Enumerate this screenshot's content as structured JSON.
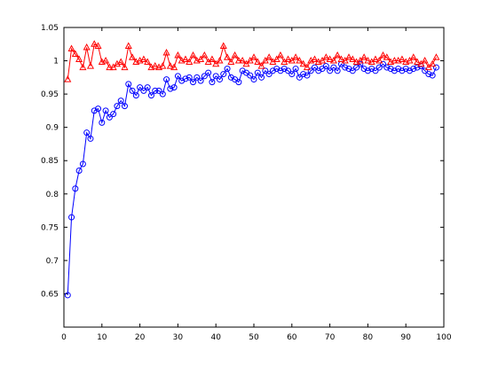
{
  "chart_data": {
    "type": "line",
    "title": "",
    "xlabel": "",
    "ylabel": "",
    "xlim": [
      0,
      100
    ],
    "ylim": [
      0.6,
      1.05
    ],
    "grid": false,
    "legend": "none",
    "xticks": [
      0,
      10,
      20,
      30,
      40,
      50,
      60,
      70,
      80,
      90,
      100
    ],
    "xtick_labels": [
      "0",
      "10",
      "20",
      "30",
      "40",
      "50",
      "60",
      "70",
      "80",
      "90",
      "100"
    ],
    "yticks": [
      0.65,
      0.7,
      0.75,
      0.8,
      0.85,
      0.9,
      0.95,
      1,
      1.05
    ],
    "ytick_labels": [
      "0.65",
      "0.7",
      "0.75",
      "0.8",
      "0.85",
      "0.9",
      "0.95",
      "1",
      "1.05"
    ],
    "x": [
      1,
      2,
      3,
      4,
      5,
      6,
      7,
      8,
      9,
      10,
      11,
      12,
      13,
      14,
      15,
      16,
      17,
      18,
      19,
      20,
      21,
      22,
      23,
      24,
      25,
      26,
      27,
      28,
      29,
      30,
      31,
      32,
      33,
      34,
      35,
      36,
      37,
      38,
      39,
      40,
      41,
      42,
      43,
      44,
      45,
      46,
      47,
      48,
      49,
      50,
      51,
      52,
      53,
      54,
      55,
      56,
      57,
      58,
      59,
      60,
      61,
      62,
      63,
      64,
      65,
      66,
      67,
      68,
      69,
      70,
      71,
      72,
      73,
      74,
      75,
      76,
      77,
      78,
      79,
      80,
      81,
      82,
      83,
      84,
      85,
      86,
      87,
      88,
      89,
      90,
      91,
      92,
      93,
      94,
      95,
      96,
      97,
      98
    ],
    "series": [
      {
        "color": "#0000ff",
        "marker": "circle",
        "values": [
          0.648,
          0.765,
          0.808,
          0.835,
          0.845,
          0.892,
          0.883,
          0.925,
          0.928,
          0.907,
          0.925,
          0.915,
          0.92,
          0.932,
          0.94,
          0.932,
          0.965,
          0.955,
          0.948,
          0.96,
          0.955,
          0.96,
          0.948,
          0.955,
          0.955,
          0.95,
          0.972,
          0.958,
          0.96,
          0.977,
          0.97,
          0.973,
          0.975,
          0.968,
          0.975,
          0.97,
          0.977,
          0.982,
          0.968,
          0.977,
          0.972,
          0.98,
          0.988,
          0.975,
          0.972,
          0.968,
          0.985,
          0.982,
          0.978,
          0.972,
          0.982,
          0.975,
          0.985,
          0.98,
          0.985,
          0.988,
          0.985,
          0.988,
          0.985,
          0.98,
          0.988,
          0.975,
          0.98,
          0.978,
          0.985,
          0.99,
          0.985,
          0.988,
          0.992,
          0.985,
          0.99,
          0.985,
          0.995,
          0.99,
          0.988,
          0.985,
          0.99,
          0.995,
          0.988,
          0.985,
          0.988,
          0.985,
          0.99,
          0.995,
          0.99,
          0.988,
          0.985,
          0.988,
          0.985,
          0.988,
          0.985,
          0.988,
          0.99,
          0.992,
          0.985,
          0.98,
          0.978,
          0.99
        ]
      },
      {
        "color": "#ff0000",
        "marker": "triangle",
        "values": [
          0.972,
          1.018,
          1.01,
          1.002,
          0.99,
          1.02,
          0.992,
          1.025,
          1.022,
          0.998,
          1.0,
          0.99,
          0.99,
          0.995,
          0.998,
          0.99,
          1.022,
          1.005,
          0.998,
          1.0,
          1.002,
          0.998,
          0.99,
          0.992,
          0.99,
          0.992,
          1.012,
          0.992,
          0.99,
          1.008,
          1.0,
          1.002,
          0.998,
          1.008,
          1.0,
          1.002,
          1.008,
          0.998,
          1.002,
          0.995,
          1.0,
          1.022,
          1.005,
          0.998,
          1.008,
          1.0,
          1.0,
          0.995,
          1.0,
          1.005,
          0.998,
          0.992,
          1.0,
          1.005,
          0.998,
          1.002,
          1.008,
          0.998,
          1.002,
          1.0,
          1.005,
          1.0,
          0.995,
          0.99,
          1.0,
          1.002,
          0.998,
          1.0,
          1.005,
          1.002,
          1.0,
          1.008,
          1.002,
          1.0,
          1.005,
          1.002,
          0.998,
          1.0,
          1.005,
          1.0,
          0.998,
          1.002,
          1.0,
          1.008,
          1.005,
          0.998,
          1.0,
          1.0,
          1.002,
          0.998,
          1.0,
          1.005,
          0.998,
          0.995,
          1.0,
          0.99,
          0.995,
          1.005
        ]
      }
    ]
  }
}
